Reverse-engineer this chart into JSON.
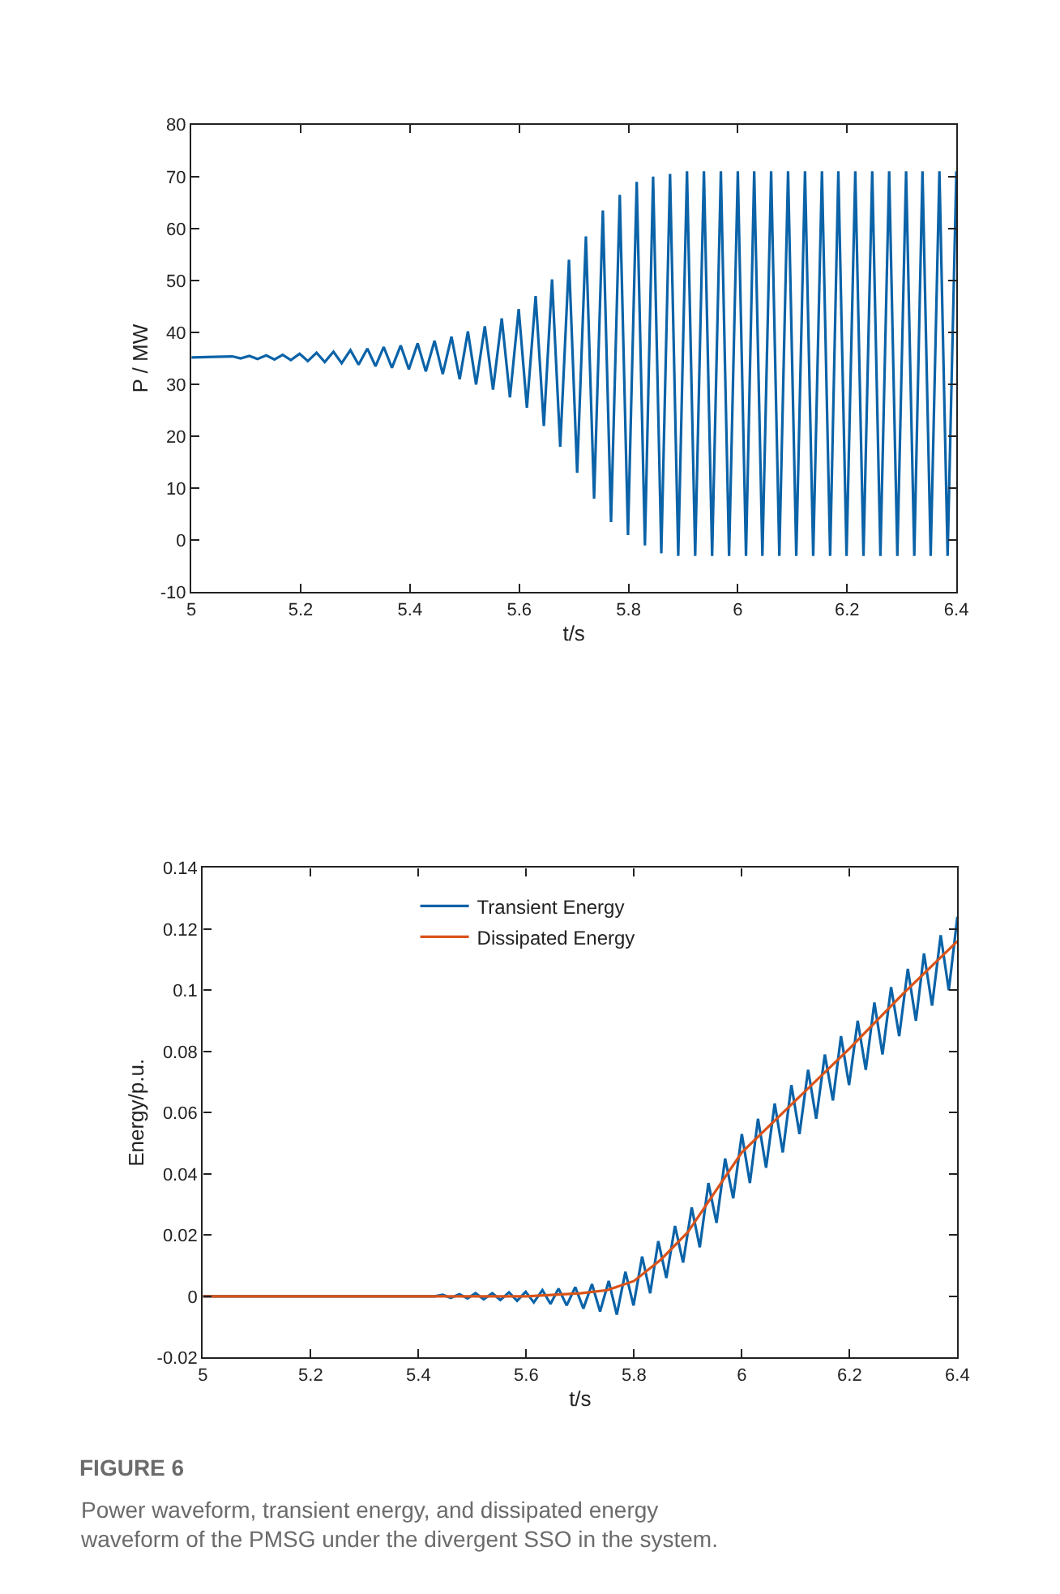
{
  "chart_data": [
    {
      "type": "line",
      "xlabel": "t/s",
      "ylabel": "P / MW",
      "xlim": [
        5,
        6.4
      ],
      "ylim": [
        -10,
        80
      ],
      "xticks": [
        5,
        5.2,
        5.4,
        5.6,
        5.8,
        6,
        6.2,
        6.4
      ],
      "yticks": [
        -10,
        0,
        10,
        20,
        30,
        40,
        50,
        60,
        70,
        80
      ],
      "legend": false,
      "series": [
        {
          "color": "#0b63a8",
          "x": [
            5.0,
            5.075,
            5.09,
            5.106,
            5.121,
            5.137,
            5.152,
            5.167,
            5.182,
            5.198,
            5.213,
            5.229,
            5.244,
            5.26,
            5.275,
            5.291,
            5.306,
            5.322,
            5.337,
            5.352,
            5.367,
            5.383,
            5.398,
            5.414,
            5.429,
            5.445,
            5.46,
            5.476,
            5.491,
            5.506,
            5.521,
            5.537,
            5.552,
            5.568,
            5.583,
            5.599,
            5.614,
            5.63,
            5.645,
            5.66,
            5.675,
            5.691,
            5.706,
            5.722,
            5.737,
            5.753,
            5.768,
            5.784,
            5.799,
            5.815,
            5.83,
            5.845,
            5.86,
            5.876,
            5.891,
            5.907,
            5.922,
            5.938,
            5.953,
            5.969,
            5.984,
            6.0,
            6.015,
            6.03,
            6.045,
            6.061,
            6.076,
            6.092,
            6.107,
            6.123,
            6.138,
            6.154,
            6.169,
            6.184,
            6.199,
            6.215,
            6.23,
            6.246,
            6.261,
            6.277,
            6.292,
            6.308,
            6.323,
            6.338,
            6.353,
            6.369,
            6.384,
            6.4
          ],
          "values": [
            35.2,
            35.4,
            35.0,
            35.5,
            34.9,
            35.6,
            34.8,
            35.7,
            34.7,
            35.9,
            34.5,
            36.1,
            34.3,
            36.3,
            34.1,
            36.6,
            33.8,
            36.9,
            33.5,
            37.2,
            33.2,
            37.5,
            32.9,
            37.9,
            32.5,
            38.4,
            32,
            39.2,
            31,
            40.2,
            30,
            41.2,
            29,
            42.7,
            27.5,
            44.5,
            25.5,
            47,
            22,
            50.2,
            18,
            54,
            13,
            58.5,
            8,
            63.5,
            3.5,
            66.5,
            1,
            69,
            -1,
            70,
            -2.5,
            70.5,
            -3,
            71,
            -3,
            71,
            -3,
            71,
            -3,
            71,
            -3,
            71,
            -3,
            71,
            -3,
            71,
            -3,
            71,
            -3,
            71,
            -3,
            71,
            -3,
            71,
            -3,
            71,
            -3,
            71,
            -3,
            71,
            -3,
            71,
            -3,
            71,
            -3,
            71
          ]
        }
      ]
    },
    {
      "type": "line",
      "xlabel": "t/s",
      "ylabel": "Energy/p.u.",
      "xlim": [
        5,
        6.4
      ],
      "ylim": [
        -0.02,
        0.14
      ],
      "xticks": [
        5,
        5.2,
        5.4,
        5.6,
        5.8,
        6,
        6.2,
        6.4
      ],
      "yticks": [
        -0.02,
        0,
        0.02,
        0.04,
        0.06,
        0.08,
        0.1,
        0.12,
        0.14
      ],
      "legend": "top",
      "annotations": [
        "FIGURE 6",
        "Power waveform, transient energy, and dissipated energy waveform of the PMSG under the divergent SSO in the system."
      ],
      "series": [
        {
          "name": "Transient Energy",
          "color": "#0b63a8",
          "x": [
            5.0,
            5.43,
            5.445,
            5.46,
            5.476,
            5.491,
            5.506,
            5.521,
            5.537,
            5.552,
            5.568,
            5.583,
            5.599,
            5.614,
            5.63,
            5.645,
            5.66,
            5.675,
            5.691,
            5.706,
            5.722,
            5.737,
            5.753,
            5.768,
            5.784,
            5.799,
            5.815,
            5.83,
            5.845,
            5.86,
            5.876,
            5.891,
            5.907,
            5.922,
            5.938,
            5.953,
            5.969,
            5.984,
            6.0,
            6.015,
            6.03,
            6.045,
            6.061,
            6.076,
            6.092,
            6.107,
            6.123,
            6.138,
            6.154,
            6.169,
            6.184,
            6.199,
            6.215,
            6.23,
            6.246,
            6.261,
            6.277,
            6.292,
            6.308,
            6.323,
            6.338,
            6.353,
            6.369,
            6.384,
            6.4
          ],
          "values": [
            0,
            0,
            0.0005,
            -0.0005,
            0.0007,
            -0.0007,
            0.001,
            -0.001,
            0.001,
            -0.0012,
            0.0013,
            -0.0015,
            0.0015,
            -0.002,
            0.002,
            -0.0025,
            0.0025,
            -0.003,
            0.003,
            -0.004,
            0.004,
            -0.005,
            0.005,
            -0.006,
            0.008,
            -0.003,
            0.013,
            0.001,
            0.018,
            0.006,
            0.023,
            0.011,
            0.029,
            0.016,
            0.037,
            0.024,
            0.045,
            0.032,
            0.053,
            0.037,
            0.058,
            0.042,
            0.063,
            0.047,
            0.069,
            0.053,
            0.074,
            0.058,
            0.079,
            0.064,
            0.085,
            0.069,
            0.09,
            0.074,
            0.096,
            0.079,
            0.101,
            0.085,
            0.107,
            0.09,
            0.112,
            0.095,
            0.118,
            0.1,
            0.124
          ]
        },
        {
          "name": "Dissipated Energy",
          "color": "#d95319",
          "x": [
            5.0,
            5.6,
            5.7,
            5.75,
            5.8,
            5.85,
            5.9,
            5.95,
            6.0,
            6.1,
            6.2,
            6.3,
            6.4
          ],
          "values": [
            0,
            0,
            0.001,
            0.002,
            0.005,
            0.012,
            0.021,
            0.034,
            0.047,
            0.064,
            0.081,
            0.099,
            0.116
          ]
        }
      ]
    }
  ]
}
